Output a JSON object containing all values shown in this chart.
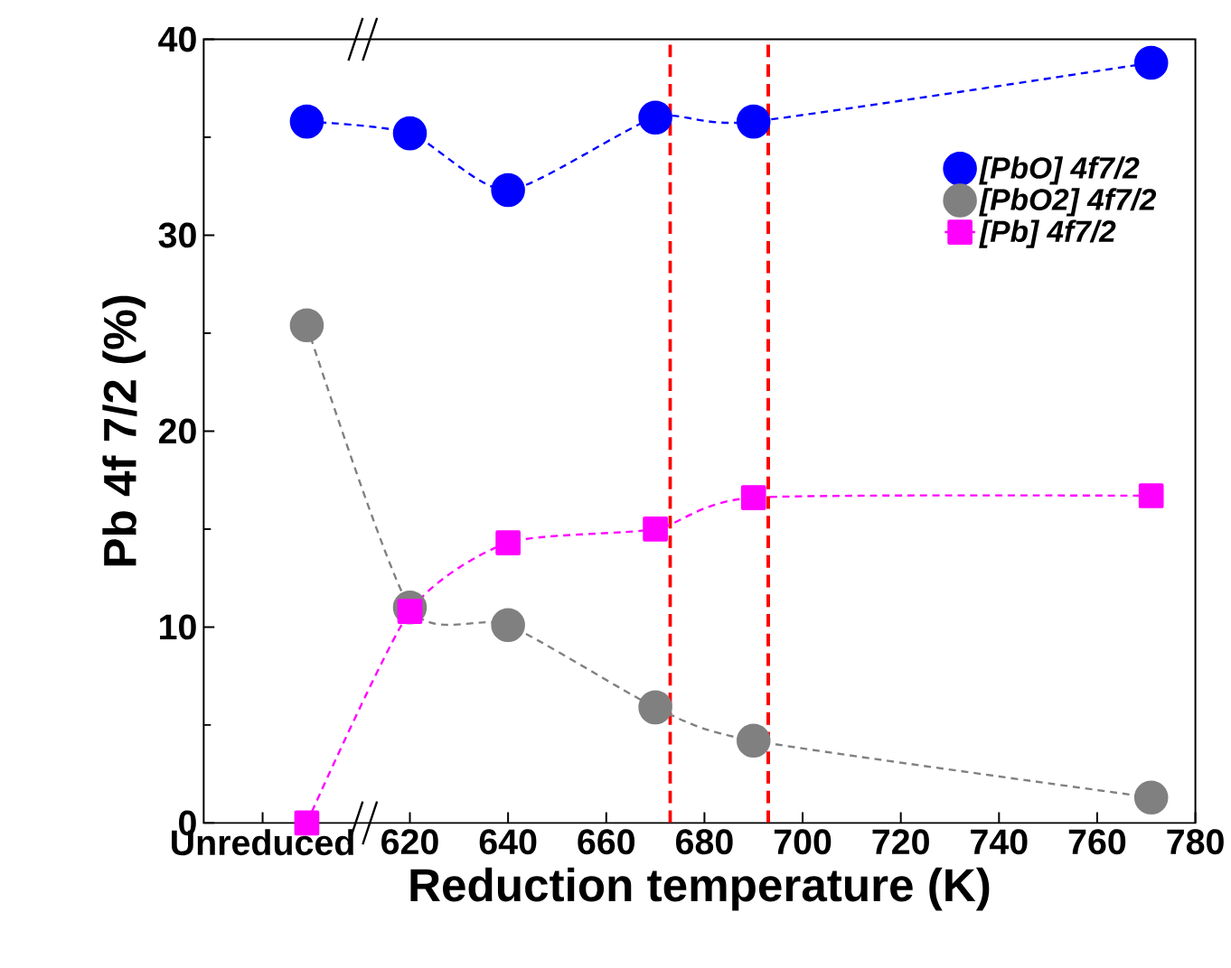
{
  "chart_data": {
    "type": "line",
    "xlabel": "Reduction temperature (K)",
    "ylabel": "Pb 4f 7/2 (%)",
    "xlim": [
      578,
      780
    ],
    "ylim": [
      0,
      40
    ],
    "xticks": [
      {
        "value": 590,
        "label": "Unreduced"
      },
      620,
      640,
      660,
      680,
      700,
      720,
      740,
      760,
      780
    ],
    "yticks": [
      0,
      10,
      20,
      30,
      40
    ],
    "x": [
      599,
      620,
      640,
      670,
      690,
      771
    ],
    "series": [
      {
        "name": "[PbO] 4f7/2",
        "color": "#0000ff",
        "marker": "circle",
        "values": [
          35.8,
          35.2,
          32.3,
          36.0,
          35.8,
          38.8
        ]
      },
      {
        "name": "[PbO2] 4f7/2",
        "color": "#808080",
        "marker": "circle",
        "values": [
          25.4,
          11.0,
          10.1,
          5.9,
          4.2,
          1.3
        ]
      },
      {
        "name": "[Pb] 4f7/2",
        "color": "#ff00ff",
        "marker": "square",
        "values": [
          0,
          10.8,
          14.3,
          15.0,
          16.6,
          16.7
        ]
      }
    ],
    "line_style": "dashed",
    "legend": "top right",
    "grid": false,
    "ref_lines": [
      {
        "axis": "x",
        "value": 673,
        "color": "#ff0000",
        "line_style": "dashed"
      },
      {
        "axis": "x",
        "value": 693,
        "color": "#ff0000",
        "line_style": "dashed"
      }
    ]
  }
}
